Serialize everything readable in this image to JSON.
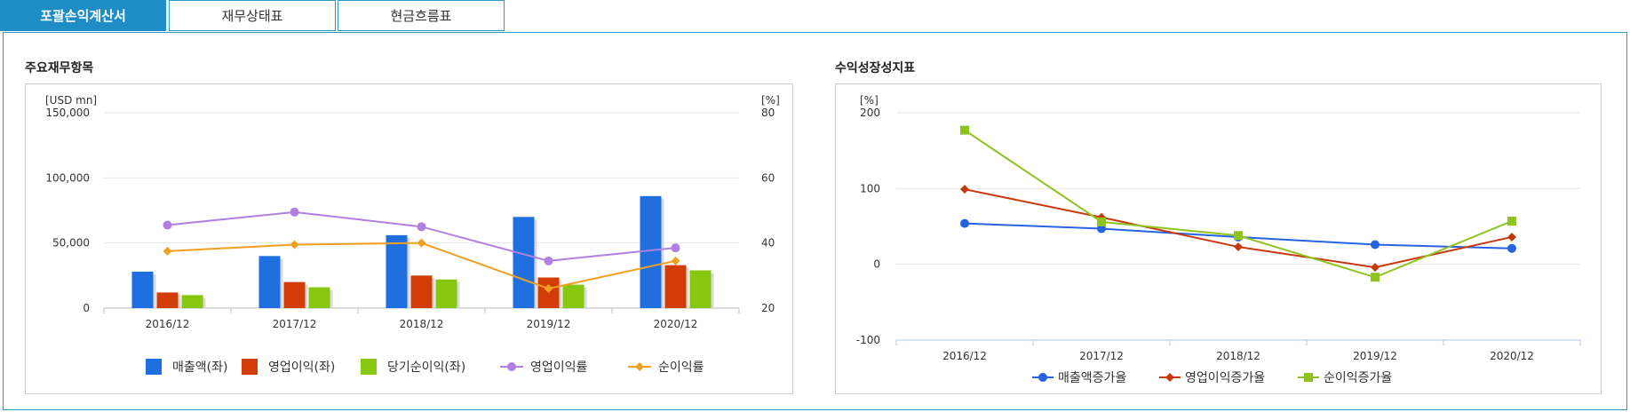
{
  "tabs": [
    {
      "label": "포괄손익계산서",
      "active": true
    },
    {
      "label": "재무상태표",
      "active": false
    },
    {
      "label": "현금흐름표",
      "active": false
    }
  ],
  "left_panel": {
    "title": "주요재무항목"
  },
  "right_panel": {
    "title": "수익성장성지표"
  },
  "chart_data": [
    {
      "type": "bar",
      "categories": [
        "2016/12",
        "2017/12",
        "2018/12",
        "2019/12",
        "2020/12"
      ],
      "left_axis": {
        "unit": "[USD mn]",
        "range": [
          0,
          150000
        ],
        "ticks": [
          0,
          50000,
          100000,
          150000
        ],
        "tick_labels": [
          "0",
          "50,000",
          "100,000",
          "150,000"
        ]
      },
      "right_axis": {
        "unit": "[%]",
        "range": [
          20,
          80
        ],
        "ticks": [
          20,
          40,
          60,
          80
        ],
        "tick_labels": [
          "20",
          "40",
          "60",
          "80"
        ]
      },
      "series": [
        {
          "name": "매출액(좌)",
          "kind": "bar",
          "axis": "left",
          "color": "#1f6fe0",
          "values": [
            28000,
            40000,
            56000,
            70000,
            86000
          ]
        },
        {
          "name": "영업이익(좌)",
          "kind": "bar",
          "axis": "left",
          "color": "#d23c07",
          "values": [
            12000,
            20000,
            25000,
            23500,
            33000
          ]
        },
        {
          "name": "당기순이익(좌)",
          "kind": "bar",
          "axis": "left",
          "color": "#88c70f",
          "values": [
            10000,
            16000,
            22000,
            18000,
            29000
          ]
        },
        {
          "name": "영업이익률",
          "kind": "line",
          "axis": "right",
          "color": "#b07fe0",
          "marker": "circle",
          "values": [
            45.5,
            49.5,
            45,
            34.5,
            38.5
          ]
        },
        {
          "name": "순이익률",
          "kind": "line",
          "axis": "right",
          "color": "#f0a020",
          "marker": "diamond",
          "values": [
            37.5,
            39.5,
            40,
            26,
            34.5
          ]
        }
      ],
      "grid": "horizontal",
      "legend": "bottom"
    },
    {
      "type": "line",
      "categories": [
        "2016/12",
        "2017/12",
        "2018/12",
        "2019/12",
        "2020/12"
      ],
      "y_axis": {
        "unit": "[%]",
        "range": [
          -100,
          200
        ],
        "ticks": [
          -100,
          0,
          100,
          200
        ],
        "tick_labels": [
          "-100",
          "0",
          "100",
          "200"
        ]
      },
      "series": [
        {
          "name": "매출액증가율",
          "color": "#2563e0",
          "marker": "circle",
          "values": [
            54,
            47,
            36,
            26,
            21
          ]
        },
        {
          "name": "영업이익증가율",
          "color": "#c8380e",
          "marker": "diamond",
          "values": [
            99,
            62,
            23,
            -4,
            36
          ]
        },
        {
          "name": "순이익증가율",
          "color": "#8fc31f",
          "marker": "square",
          "values": [
            177,
            56,
            38,
            -17,
            57
          ]
        }
      ],
      "grid": "horizontal",
      "legend": "bottom"
    }
  ]
}
